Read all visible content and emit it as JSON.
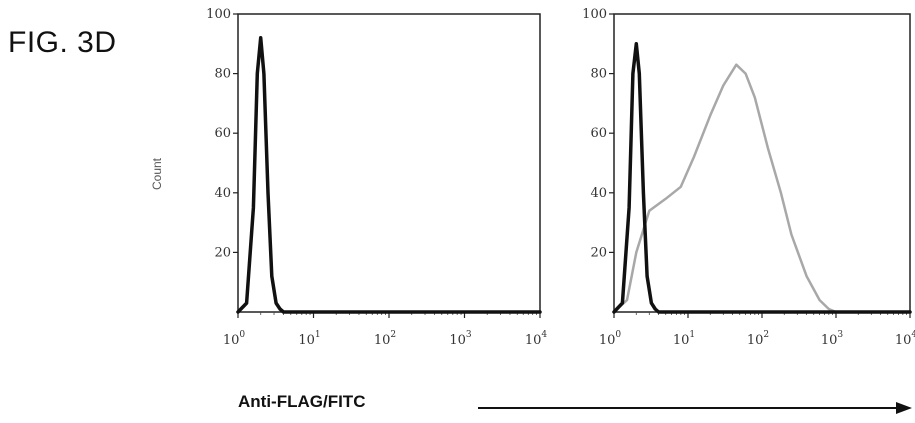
{
  "figure_label": "FIG. 3D",
  "y_axis_label": "Count",
  "x_axis_label": "Anti-FLAG/FITC",
  "chart_data": [
    {
      "type": "line",
      "title": "",
      "xlabel": "Anti-FLAG/FITC",
      "ylabel": "Count",
      "xscale": "log",
      "xlim": [
        1,
        10000
      ],
      "ylim": [
        0,
        100
      ],
      "yticks": [
        20,
        40,
        60,
        80,
        100
      ],
      "xticks": [
        1,
        10,
        100,
        1000,
        10000
      ],
      "xtick_labels": [
        {
          "base": "10",
          "exp": "0"
        },
        {
          "base": "10",
          "exp": "1"
        },
        {
          "base": "10",
          "exp": "2"
        },
        {
          "base": "10",
          "exp": "3"
        },
        {
          "base": "10",
          "exp": "4"
        }
      ],
      "series": [
        {
          "color": "#111111",
          "x": [
            1.0,
            1.3,
            1.6,
            1.8,
            2.0,
            2.2,
            2.5,
            2.8,
            3.2,
            3.6,
            4.0,
            10,
            100,
            1000,
            10000
          ],
          "y": [
            0,
            3,
            35,
            80,
            92,
            80,
            40,
            12,
            3,
            1,
            0,
            0,
            0,
            0,
            0
          ]
        }
      ],
      "legend": "none",
      "grid": false
    },
    {
      "type": "line",
      "title": "",
      "xlabel": "Anti-FLAG/FITC",
      "ylabel": "Count",
      "xscale": "log",
      "xlim": [
        1,
        10000
      ],
      "ylim": [
        0,
        100
      ],
      "yticks": [
        20,
        40,
        60,
        80,
        100
      ],
      "xticks": [
        1,
        10,
        100,
        1000,
        10000
      ],
      "xtick_labels": [
        {
          "base": "10",
          "exp": "0"
        },
        {
          "base": "10",
          "exp": "1"
        },
        {
          "base": "10",
          "exp": "2"
        },
        {
          "base": "10",
          "exp": "3"
        },
        {
          "base": "10",
          "exp": "4"
        }
      ],
      "series": [
        {
          "color": "#111111",
          "x": [
            1.0,
            1.3,
            1.6,
            1.8,
            2.0,
            2.2,
            2.5,
            2.8,
            3.2,
            3.6,
            4.0,
            10,
            100,
            1000,
            10000
          ],
          "y": [
            0,
            3,
            35,
            80,
            90,
            80,
            40,
            12,
            3,
            1,
            0,
            0,
            0,
            0,
            0
          ]
        },
        {
          "color": "#a8a8a8",
          "x": [
            1.0,
            1.5,
            2.0,
            3.0,
            5.0,
            8.0,
            12,
            20,
            30,
            45,
            60,
            80,
            120,
            180,
            250,
            400,
            600,
            800,
            1000
          ],
          "y": [
            0,
            4,
            20,
            34,
            38,
            42,
            52,
            66,
            76,
            83,
            80,
            72,
            55,
            40,
            26,
            12,
            4,
            1,
            0
          ]
        }
      ],
      "legend": "none",
      "grid": false
    }
  ]
}
